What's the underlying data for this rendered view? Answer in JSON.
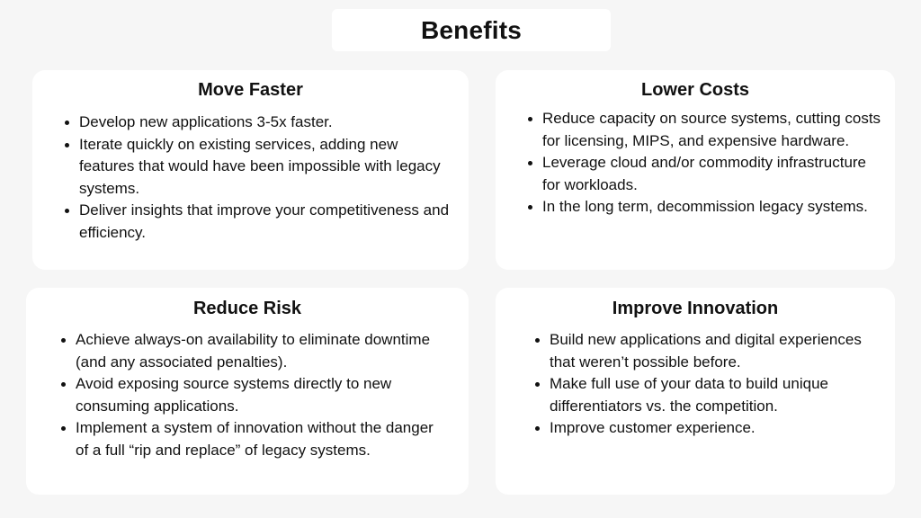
{
  "title": "Benefits",
  "cards": [
    {
      "heading": "Move Faster",
      "items": [
        "Develop new applications 3-5x faster.",
        "Iterate quickly on existing services, adding new features that would have been impossible with legacy systems.",
        "Deliver insights that improve your competitiveness and efficiency."
      ]
    },
    {
      "heading": "Lower Costs",
      "items": [
        "Reduce capacity on source systems, cutting costs for licensing, MIPS, and expensive hardware.",
        "Leverage cloud and/or commodity infrastructure for workloads.",
        "In the long term, decommission legacy systems."
      ]
    },
    {
      "heading": "Reduce Risk",
      "items": [
        "Achieve always-on availability to eliminate downtime (and any associated penalties).",
        "Avoid exposing source systems directly to new consuming applications.",
        "Implement a system of innovation without the danger of a full “rip and replace” of legacy systems."
      ]
    },
    {
      "heading": "Improve Innovation",
      "items": [
        "Build new applications and digital experiences that weren’t possible before.",
        "Make full use of your data to build unique differentiators vs. the competition.",
        "Improve customer experience."
      ]
    }
  ]
}
